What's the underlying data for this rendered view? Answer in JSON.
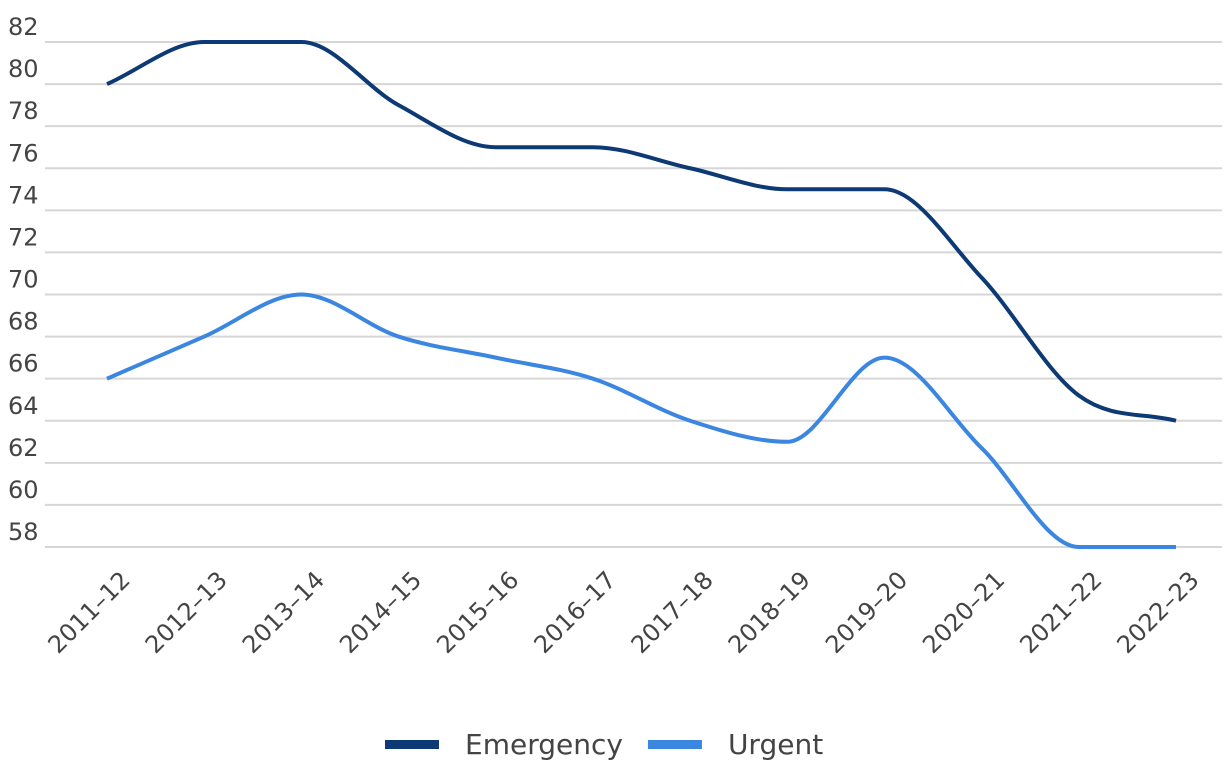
{
  "chart_data": {
    "type": "line",
    "categories": [
      "2011–12",
      "2012–13",
      "2013–14",
      "2014–15",
      "2015–16",
      "2016–17",
      "2017–18",
      "2018–19",
      "2019–20",
      "2020–21",
      "2021–22",
      "2022–23"
    ],
    "series": [
      {
        "name": "Emergency",
        "color": "#0d3a75",
        "values": [
          80,
          82,
          82,
          79,
          77,
          77,
          76,
          75,
          75,
          70.8,
          65.2,
          64
        ]
      },
      {
        "name": "Urgent",
        "color": "#3b86e0",
        "values": [
          66,
          68,
          70,
          68,
          67,
          66,
          64,
          63,
          67,
          62.7,
          58,
          58
        ]
      }
    ],
    "ylim": [
      58,
      82
    ],
    "yticks": [
      58,
      60,
      62,
      64,
      66,
      68,
      70,
      72,
      74,
      76,
      78,
      80,
      82
    ],
    "grid": true,
    "legend": "bottom"
  }
}
